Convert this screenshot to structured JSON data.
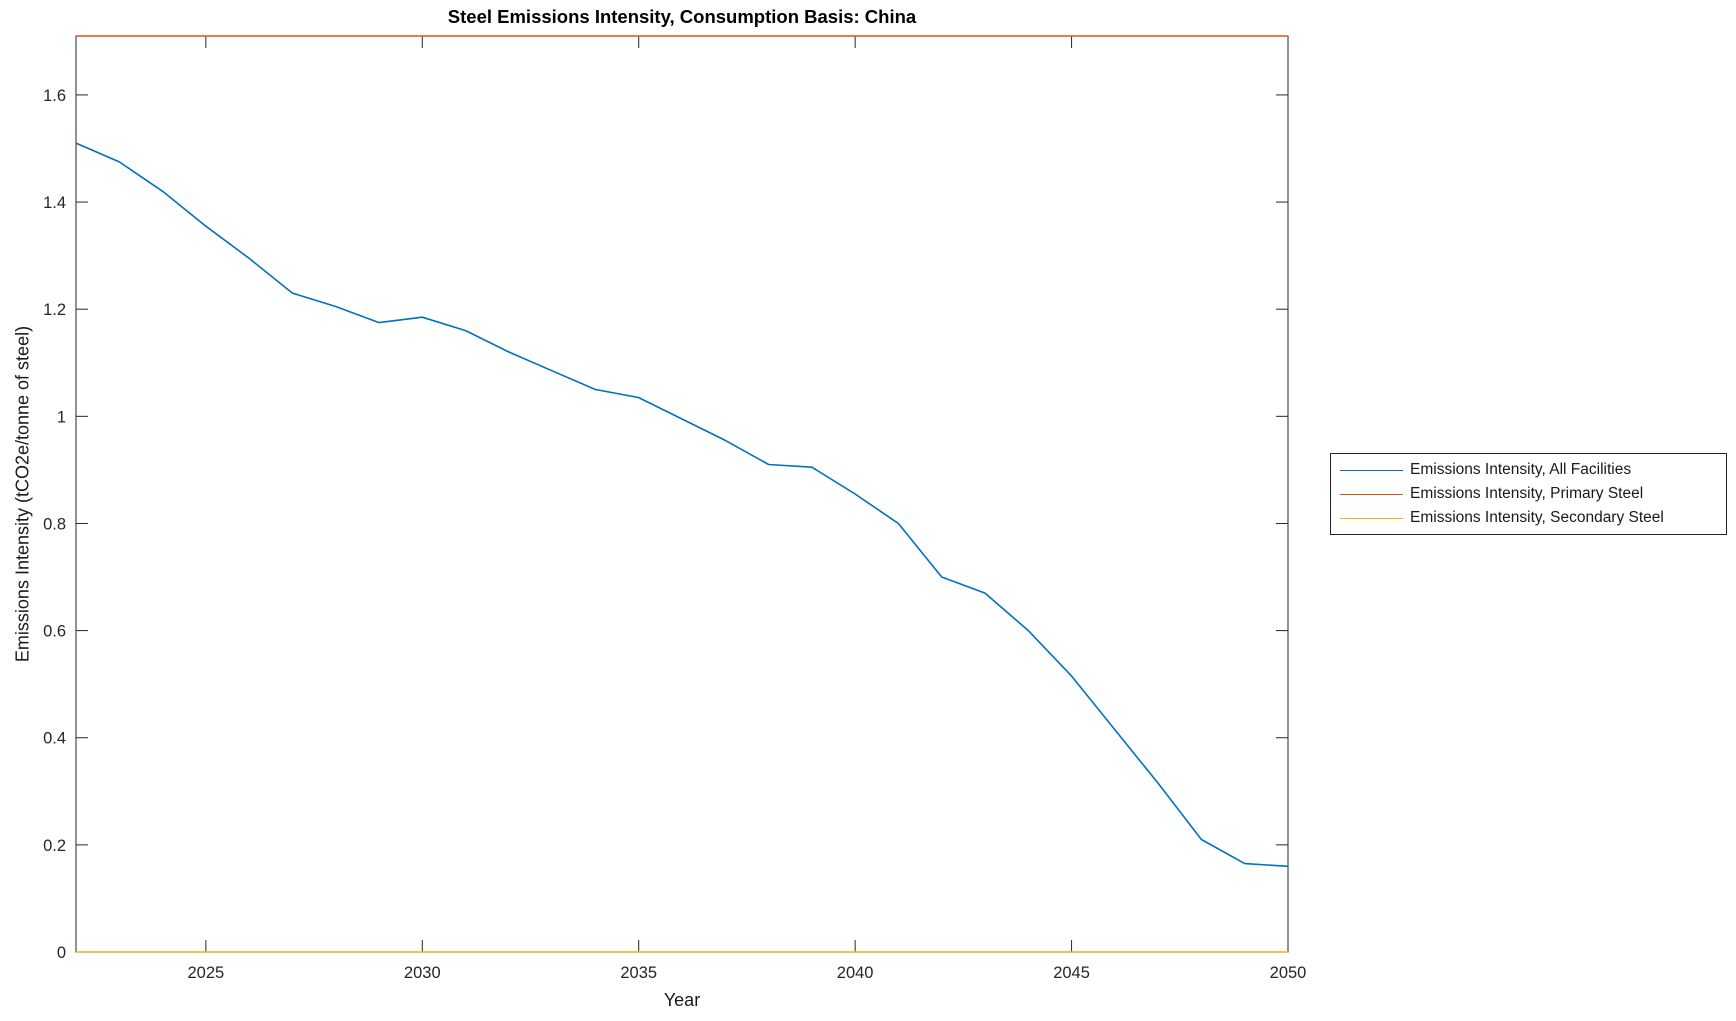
{
  "chart_data": {
    "type": "line",
    "title": "Steel Emissions Intensity, Consumption Basis: China",
    "xlabel": "Year",
    "ylabel": "Emissions Intensity (tCO2e/tonne of steel)",
    "x": [
      2022,
      2023,
      2024,
      2025,
      2026,
      2027,
      2028,
      2029,
      2030,
      2031,
      2032,
      2033,
      2034,
      2035,
      2036,
      2037,
      2038,
      2039,
      2040,
      2041,
      2042,
      2043,
      2044,
      2045,
      2046,
      2047,
      2048,
      2049,
      2050
    ],
    "series": [
      {
        "name": "Emissions Intensity, All Facilities",
        "color": "#0072BD",
        "values": [
          1.51,
          1.475,
          1.42,
          1.355,
          1.295,
          1.23,
          1.205,
          1.175,
          1.185,
          1.16,
          1.12,
          1.085,
          1.05,
          1.035,
          0.995,
          0.955,
          0.91,
          0.905,
          0.855,
          0.8,
          0.7,
          0.67,
          0.6,
          0.515,
          0.415,
          0.315,
          0.21,
          0.165,
          0.16
        ]
      },
      {
        "name": "Emissions Intensity, Primary Steel",
        "color": "#D95319",
        "constant_value": 1.71
      },
      {
        "name": "Emissions Intensity, Secondary Steel",
        "color": "#EDB120",
        "constant_value": 0.0
      }
    ],
    "xlim": [
      2022,
      2050
    ],
    "ylim": [
      0,
      1.71
    ],
    "xticks": [
      2025,
      2030,
      2035,
      2040,
      2045,
      2050
    ],
    "yticks": [
      0,
      0.2,
      0.4,
      0.6,
      0.8,
      1,
      1.2,
      1.4,
      1.6
    ],
    "grid": false,
    "legend_position": "right-outside",
    "axes_style": {
      "box": true,
      "tick_direction": "in",
      "tick_color": "#262626",
      "box_color": "#262626",
      "background": "#ffffff"
    }
  }
}
